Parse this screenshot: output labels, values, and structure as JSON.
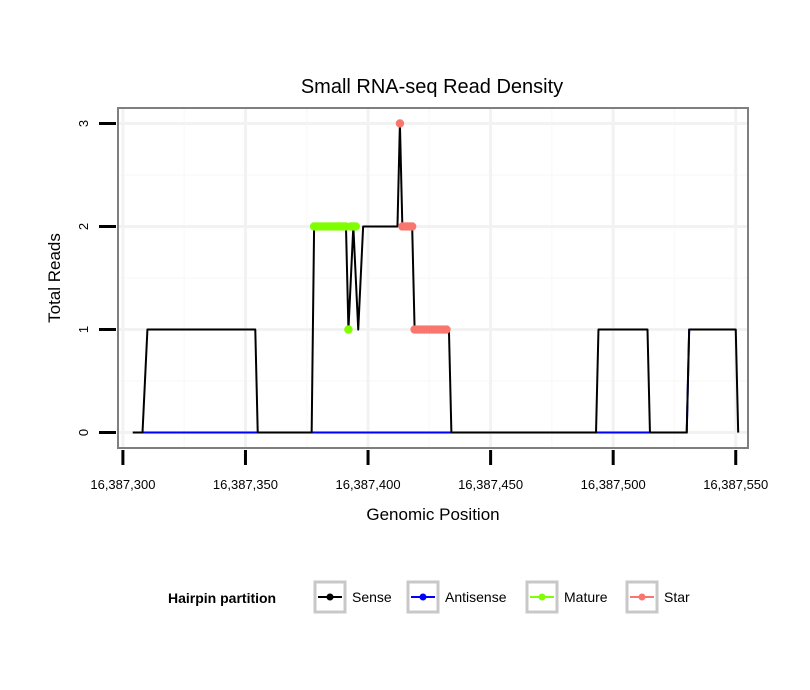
{
  "chart_data": {
    "type": "line",
    "title": "Small RNA-seq Read Density",
    "xlabel": "Genomic Position",
    "ylabel": "Total Reads",
    "xlim": [
      16387298,
      16387555
    ],
    "ylim": [
      -0.15,
      3.15
    ],
    "x_ticks": [
      16387300,
      16387350,
      16387400,
      16387450,
      16387500,
      16387550
    ],
    "x_tick_labels": [
      "16,387,300",
      "16,387,350",
      "16,387,400",
      "16,387,450",
      "16,387,500",
      "16,387,550"
    ],
    "y_ticks": [
      0,
      1,
      2,
      3
    ],
    "y_tick_labels": [
      "0",
      "1",
      "2",
      "3"
    ],
    "grid": true,
    "legend": {
      "title": "Hairpin partition",
      "position": "bottom",
      "items": [
        {
          "label": "Sense",
          "color": "#000000"
        },
        {
          "label": "Antisense",
          "color": "#0000ff"
        },
        {
          "label": "Mature",
          "color": "#7fff00"
        },
        {
          "label": "Star",
          "color": "#f8766d"
        }
      ]
    },
    "series": [
      {
        "name": "Sense",
        "color": "#000000",
        "points": [
          [
            16387304,
            0
          ],
          [
            16387308,
            0
          ],
          [
            16387310,
            1
          ],
          [
            16387354,
            1
          ],
          [
            16387355,
            0
          ],
          [
            16387377,
            0
          ],
          [
            16387378,
            2
          ],
          [
            16387391,
            2
          ],
          [
            16387392,
            1
          ],
          [
            16387394,
            2
          ],
          [
            16387396,
            1
          ],
          [
            16387398,
            2
          ],
          [
            16387412,
            2
          ],
          [
            16387413,
            3
          ],
          [
            16387414,
            2
          ],
          [
            16387418,
            2
          ],
          [
            16387419,
            1
          ],
          [
            16387433,
            1
          ],
          [
            16387434,
            0
          ],
          [
            16387493,
            0
          ],
          [
            16387494,
            1
          ],
          [
            16387514,
            1
          ],
          [
            16387515,
            0
          ],
          [
            16387530,
            0
          ],
          [
            16387531,
            1
          ],
          [
            16387550,
            1
          ],
          [
            16387551,
            0
          ]
        ]
      },
      {
        "name": "Antisense",
        "color": "#0000ff",
        "points": [
          [
            16387308,
            0
          ],
          [
            16387530,
            0
          ],
          [
            16387531,
            1
          ],
          [
            16387544,
            1
          ]
        ]
      },
      {
        "name": "Mature",
        "color": "#7fff00",
        "points": [
          [
            16387378,
            2
          ],
          [
            16387379,
            2
          ],
          [
            16387380,
            2
          ],
          [
            16387381,
            2
          ],
          [
            16387382,
            2
          ],
          [
            16387383,
            2
          ],
          [
            16387384,
            2
          ],
          [
            16387385,
            2
          ],
          [
            16387386,
            2
          ],
          [
            16387387,
            2
          ],
          [
            16387388,
            2
          ],
          [
            16387389,
            2
          ],
          [
            16387390,
            2
          ],
          [
            16387391,
            2
          ],
          [
            16387392,
            1
          ],
          [
            16387393,
            2
          ],
          [
            16387394,
            2
          ],
          [
            16387395,
            2
          ]
        ]
      },
      {
        "name": "Star",
        "color": "#f8766d",
        "points": [
          [
            16387413,
            3
          ],
          [
            16387414,
            2
          ],
          [
            16387415,
            2
          ],
          [
            16387416,
            2
          ],
          [
            16387417,
            2
          ],
          [
            16387418,
            2
          ],
          [
            16387419,
            1
          ],
          [
            16387420,
            1
          ],
          [
            16387421,
            1
          ],
          [
            16387422,
            1
          ],
          [
            16387423,
            1
          ],
          [
            16387424,
            1
          ],
          [
            16387425,
            1
          ],
          [
            16387426,
            1
          ],
          [
            16387427,
            1
          ],
          [
            16387428,
            1
          ],
          [
            16387429,
            1
          ],
          [
            16387430,
            1
          ],
          [
            16387431,
            1
          ],
          [
            16387432,
            1
          ]
        ]
      }
    ]
  }
}
